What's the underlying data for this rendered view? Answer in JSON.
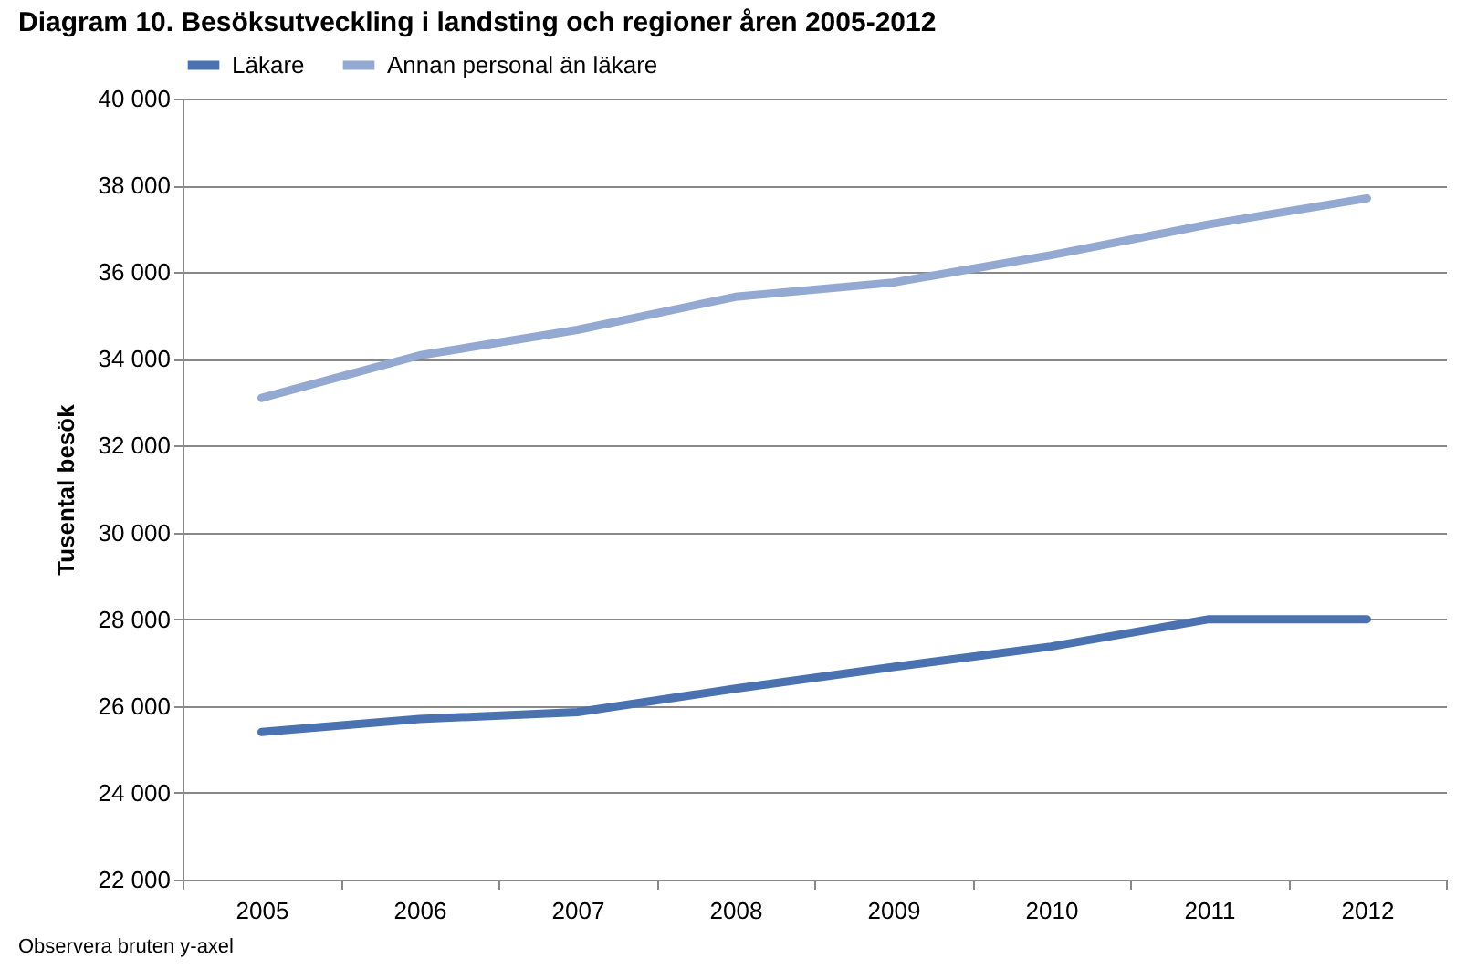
{
  "chart_data": {
    "type": "line",
    "title": "Diagram 10. Besöksutveckling i landsting och regioner åren 2005-2012",
    "ylabel": "Tusental besök",
    "categories": [
      "2005",
      "2006",
      "2007",
      "2008",
      "2009",
      "2010",
      "2011",
      "2012"
    ],
    "series": [
      {
        "name": "Läkare",
        "color": "#4a72b0",
        "values": [
          25400,
          25700,
          25860,
          26400,
          26900,
          27370,
          28000,
          28000
        ]
      },
      {
        "name": "Annan personal än läkare",
        "color": "#93a9d2",
        "values": [
          33100,
          34080,
          34670,
          35430,
          35760,
          36390,
          37100,
          37700
        ]
      }
    ],
    "ylim": [
      22000,
      40000
    ],
    "yticks": [
      {
        "value": 22000,
        "label": "22 000"
      },
      {
        "value": 24000,
        "label": "24 000"
      },
      {
        "value": 26000,
        "label": "26 000"
      },
      {
        "value": 28000,
        "label": "28 000"
      },
      {
        "value": 30000,
        "label": "30 000"
      },
      {
        "value": 32000,
        "label": "32 000"
      },
      {
        "value": 34000,
        "label": "34 000"
      },
      {
        "value": 36000,
        "label": "36 000"
      },
      {
        "value": 38000,
        "label": "38 000"
      },
      {
        "value": 40000,
        "label": "40 000"
      }
    ],
    "grid": "y",
    "legend": "top",
    "marker": "none",
    "line_style": "solid",
    "annotations": [
      "Observera bruten y-axel"
    ]
  }
}
